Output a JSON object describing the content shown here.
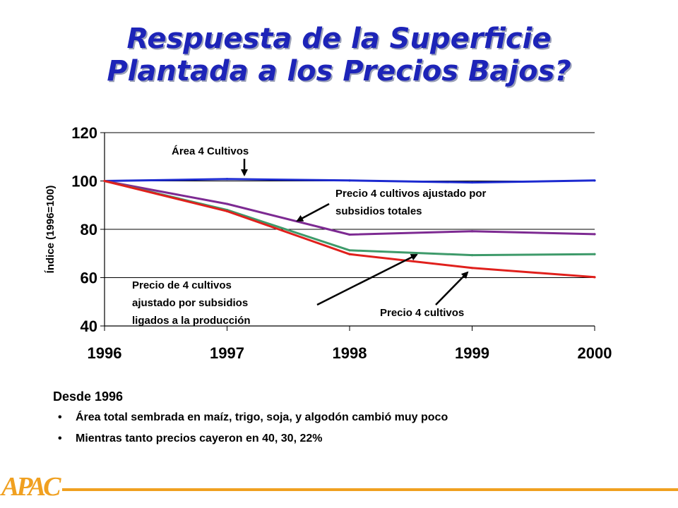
{
  "title_line1": "Respuesta de la Superficie",
  "title_line2": "Plantada a los Precios Bajos?",
  "chart_data": {
    "type": "line",
    "x": [
      1996,
      1997,
      1998,
      1999,
      2000
    ],
    "x_tick_labels": [
      "1996",
      "1997",
      "1998",
      "1999",
      "2000"
    ],
    "ylim": [
      40,
      120
    ],
    "y_ticks": [
      40,
      60,
      80,
      100,
      120
    ],
    "y_tick_labels": [
      "40",
      "60",
      "80",
      "100",
      "120"
    ],
    "ylabel": "Índice (1996=100)",
    "grid": "horizontal",
    "series": [
      {
        "name": "Área 4 Cultivos",
        "color": "#1c2ad0",
        "values": [
          100,
          100.8,
          100.2,
          99.4,
          100.2
        ]
      },
      {
        "name": "Precio 4 cultivos ajustado por subsidios totales",
        "color": "#7d2a92",
        "values": [
          100,
          90.5,
          77.8,
          79.2,
          78.0
        ]
      },
      {
        "name": "Precio de 4 cultivos ajustado por subsidios ligados a la producción",
        "color": "#3e9a6a",
        "values": [
          100,
          88.0,
          71.3,
          69.3,
          69.7
        ]
      },
      {
        "name": "Precio 4 cultivos",
        "color": "#e0201c",
        "values": [
          100,
          87.5,
          69.7,
          64.0,
          60.2
        ]
      }
    ],
    "annotations": {
      "area": "Área 4 Cultivos",
      "total_line1": "Precio 4 cultivos ajustado por",
      "total_line2": "subsidios totales",
      "prod_line1": "Precio de 4 cultivos",
      "prod_line2": "ajustado por subsidios",
      "prod_line3": "ligados a la producción",
      "price": "Precio 4 cultivos"
    }
  },
  "body": {
    "lead": "Desde 1996",
    "bullet_char": "•",
    "bullets": [
      "Área total sembrada en maíz, trigo, soja, y algodón cambió muy poco",
      "Mientras tanto precios cayeron en 40, 30, 22%"
    ]
  },
  "logo": "APAC",
  "colors": {
    "title": "#1d24b8",
    "footer_line": "#f0a020",
    "logo": "#f0a020"
  }
}
